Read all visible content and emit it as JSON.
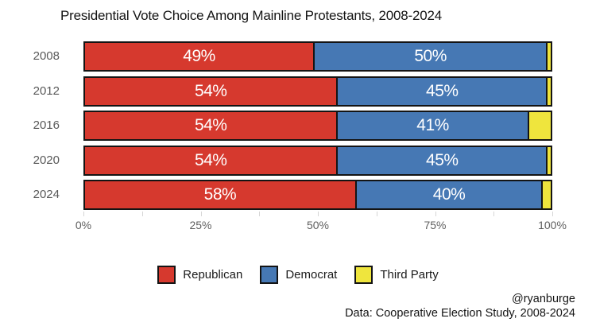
{
  "title": "Presidential Vote Choice Among Mainline Protestants, 2008-2024",
  "colors": {
    "republican": "#d6392e",
    "democrat": "#4678b4",
    "third_party": "#efe53d",
    "bar_border": "#141414"
  },
  "chart_data": {
    "type": "bar",
    "orientation": "horizontal-stacked",
    "title": "Presidential Vote Choice Among Mainline Protestants, 2008-2024",
    "categories": [
      "2008",
      "2012",
      "2016",
      "2020",
      "2024"
    ],
    "series": [
      {
        "name": "Republican",
        "color_key": "republican",
        "values": [
          49,
          54,
          54,
          54,
          58
        ],
        "labels": [
          "49%",
          "54%",
          "54%",
          "54%",
          "58%"
        ]
      },
      {
        "name": "Democrat",
        "color_key": "democrat",
        "values": [
          50,
          45,
          41,
          45,
          40
        ],
        "labels": [
          "50%",
          "45%",
          "41%",
          "45%",
          "40%"
        ]
      },
      {
        "name": "Third Party",
        "color_key": "third_party",
        "values": [
          1,
          1,
          5,
          1,
          2
        ],
        "labels": [
          "",
          "",
          "",
          "",
          ""
        ]
      }
    ],
    "xlabel": "",
    "ylabel": "",
    "xlim": [
      0,
      100
    ],
    "x_ticks": [
      {
        "label": "0%",
        "value": 0
      },
      {
        "label": "25%",
        "value": 25
      },
      {
        "label": "50%",
        "value": 50
      },
      {
        "label": "75%",
        "value": 75
      },
      {
        "label": "100%",
        "value": 100
      }
    ],
    "minor_tick_values": [
      0,
      12.5,
      25,
      37.5,
      50,
      62.5,
      75,
      87.5,
      100
    ],
    "grid": false,
    "legend_position": "bottom"
  },
  "legend": {
    "items": [
      {
        "label": "Republican",
        "color_key": "republican"
      },
      {
        "label": "Democrat",
        "color_key": "democrat"
      },
      {
        "label": "Third Party",
        "color_key": "third_party"
      }
    ]
  },
  "footer": {
    "credit": "@ryanburge",
    "source": "Data: Cooperative Election Study, 2008-2024"
  }
}
